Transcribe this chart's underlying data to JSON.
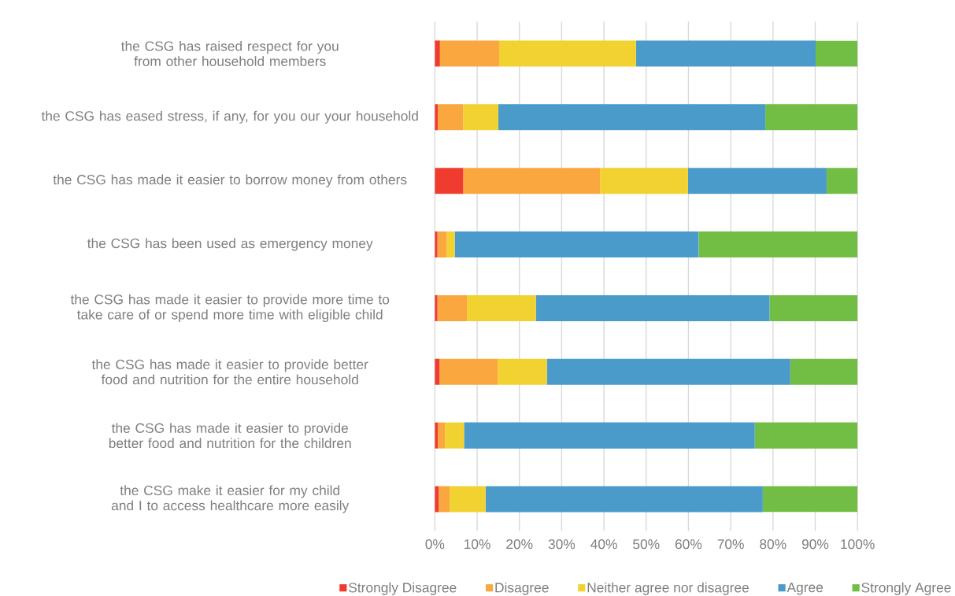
{
  "chart_data": {
    "type": "bar",
    "orientation": "horizontal",
    "stacked": true,
    "categories": [
      "the CSG has raised respect for you from other household members",
      "the CSG has eased stress, if any, for you our your household",
      "the CSG has made it easier to borrow money from others",
      "the CSG has been used as emergency money",
      "the CSG has made it easier to provide more time to take care of or spend more time with eligible child",
      "the CSG has made it easier to provide better food and nutrition for the entire household",
      "the CSG has made it easier to provide better food and nutrition for the children",
      "the CSG make it easier for my child and I to access healthcare more easily"
    ],
    "series": [
      {
        "name": "Strongly Disagree",
        "color": "#f03c2f",
        "values": [
          1.2,
          0.7,
          6.7,
          0.6,
          0.6,
          1.1,
          0.7,
          0.9
        ]
      },
      {
        "name": "Disagree",
        "color": "#f9a73e",
        "values": [
          14.0,
          6.0,
          32.4,
          2.2,
          7.0,
          13.8,
          1.7,
          2.6
        ]
      },
      {
        "name": "Neither agree nor disagree",
        "color": "#f2d230",
        "values": [
          32.4,
          8.3,
          20.8,
          1.9,
          16.3,
          11.6,
          4.5,
          8.5
        ]
      },
      {
        "name": "Agree",
        "color": "#4a9bc9",
        "values": [
          42.5,
          63.2,
          32.8,
          57.7,
          55.3,
          57.6,
          68.8,
          65.6
        ]
      },
      {
        "name": "Strongly Agree",
        "color": "#72be44",
        "values": [
          9.9,
          21.8,
          7.3,
          37.6,
          20.8,
          15.9,
          24.3,
          22.4
        ]
      }
    ],
    "xlim": [
      0,
      100
    ],
    "xticks": [
      {
        "value": 0,
        "label": "0%"
      },
      {
        "value": 10,
        "label": "10%"
      },
      {
        "value": 20,
        "label": "20%"
      },
      {
        "value": 30,
        "label": "30%"
      },
      {
        "value": 40,
        "label": "40%"
      },
      {
        "value": 50,
        "label": "50%"
      },
      {
        "value": 60,
        "label": "60%"
      },
      {
        "value": 70,
        "label": "70%"
      },
      {
        "value": 80,
        "label": "80%"
      },
      {
        "value": 90,
        "label": "90%"
      },
      {
        "value": 100,
        "label": "100%"
      }
    ],
    "grid": "x",
    "legend": "bottom"
  }
}
